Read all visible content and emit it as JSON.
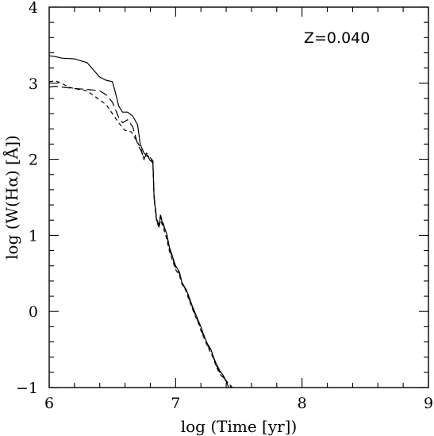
{
  "chart_data": {
    "type": "line",
    "title": "",
    "xlabel": "log (Time [yr])",
    "ylabel": "log (W(Hα) [Å])",
    "xlim": [
      6,
      9
    ],
    "ylim": [
      -1,
      4
    ],
    "x_major_ticks": [
      6,
      7,
      8,
      9
    ],
    "y_major_ticks": [
      -1,
      0,
      1,
      2,
      3,
      4
    ],
    "x_tick_labels": [
      "6",
      "7",
      "8",
      "9"
    ],
    "y_tick_labels": [
      "−1",
      "0",
      "1",
      "2",
      "3",
      "4"
    ],
    "annotation": "Z=0.040",
    "grid": false,
    "legend": "none",
    "series": [
      {
        "style": "solid",
        "color": "#000000",
        "points": [
          [
            6.0,
            3.36
          ],
          [
            6.05,
            3.35
          ],
          [
            6.1,
            3.33
          ],
          [
            6.2,
            3.32
          ],
          [
            6.3,
            3.27
          ],
          [
            6.4,
            3.08
          ],
          [
            6.45,
            3.04
          ],
          [
            6.5,
            3.02
          ],
          [
            6.52,
            2.9
          ],
          [
            6.55,
            2.7
          ],
          [
            6.58,
            2.62
          ],
          [
            6.62,
            2.62
          ],
          [
            6.66,
            2.57
          ],
          [
            6.7,
            2.45
          ],
          [
            6.72,
            2.2
          ],
          [
            6.75,
            2.08
          ],
          [
            6.78,
            2.04
          ],
          [
            6.8,
            1.98
          ],
          [
            6.82,
            1.96
          ],
          [
            6.83,
            1.5
          ],
          [
            6.85,
            1.2
          ],
          [
            6.87,
            1.12
          ],
          [
            6.88,
            1.25
          ],
          [
            6.9,
            1.15
          ],
          [
            6.93,
            1.02
          ],
          [
            6.95,
            0.85
          ],
          [
            6.98,
            0.7
          ],
          [
            7.0,
            0.6
          ],
          [
            7.03,
            0.52
          ],
          [
            7.05,
            0.38
          ],
          [
            7.08,
            0.3
          ],
          [
            7.1,
            0.22
          ],
          [
            7.13,
            0.08
          ],
          [
            7.15,
            0.0
          ],
          [
            7.18,
            -0.12
          ],
          [
            7.2,
            -0.2
          ],
          [
            7.22,
            -0.3
          ],
          [
            7.25,
            -0.42
          ],
          [
            7.28,
            -0.5
          ],
          [
            7.3,
            -0.6
          ],
          [
            7.32,
            -0.68
          ],
          [
            7.35,
            -0.78
          ],
          [
            7.38,
            -0.85
          ],
          [
            7.4,
            -0.92
          ],
          [
            7.42,
            -1.0
          ]
        ]
      },
      {
        "style": "short-dashed",
        "color": "#000000",
        "points": [
          [
            6.0,
            3.02
          ],
          [
            6.05,
            3.03
          ],
          [
            6.1,
            3.0
          ],
          [
            6.15,
            2.95
          ],
          [
            6.2,
            2.93
          ],
          [
            6.3,
            2.9
          ],
          [
            6.4,
            2.78
          ],
          [
            6.45,
            2.72
          ],
          [
            6.5,
            2.6
          ],
          [
            6.55,
            2.48
          ],
          [
            6.6,
            2.38
          ],
          [
            6.65,
            2.36
          ],
          [
            6.7,
            2.22
          ],
          [
            6.73,
            2.12
          ],
          [
            6.75,
            2.0
          ],
          [
            6.78,
            2.05
          ],
          [
            6.8,
            2.0
          ],
          [
            6.82,
            1.95
          ],
          [
            6.83,
            1.48
          ],
          [
            6.85,
            1.18
          ],
          [
            6.87,
            1.1
          ],
          [
            6.88,
            1.2
          ],
          [
            6.9,
            1.12
          ],
          [
            6.93,
            0.95
          ],
          [
            6.95,
            0.8
          ],
          [
            6.98,
            0.65
          ],
          [
            7.0,
            0.55
          ],
          [
            7.03,
            0.48
          ],
          [
            7.05,
            0.36
          ],
          [
            7.08,
            0.28
          ],
          [
            7.1,
            0.18
          ],
          [
            7.13,
            0.05
          ],
          [
            7.15,
            -0.04
          ],
          [
            7.18,
            -0.15
          ],
          [
            7.2,
            -0.25
          ],
          [
            7.22,
            -0.33
          ],
          [
            7.25,
            -0.45
          ],
          [
            7.28,
            -0.55
          ],
          [
            7.3,
            -0.62
          ],
          [
            7.32,
            -0.72
          ],
          [
            7.35,
            -0.82
          ],
          [
            7.38,
            -0.88
          ],
          [
            7.42,
            -0.95
          ],
          [
            7.45,
            -1.0
          ]
        ]
      },
      {
        "style": "long-dashed",
        "color": "#000000",
        "points": [
          [
            6.0,
            2.95
          ],
          [
            6.05,
            2.96
          ],
          [
            6.1,
            2.95
          ],
          [
            6.2,
            2.93
          ],
          [
            6.3,
            2.92
          ],
          [
            6.4,
            2.9
          ],
          [
            6.45,
            2.85
          ],
          [
            6.5,
            2.75
          ],
          [
            6.55,
            2.55
          ],
          [
            6.58,
            2.48
          ],
          [
            6.62,
            2.52
          ],
          [
            6.66,
            2.43
          ],
          [
            6.7,
            2.2
          ],
          [
            6.73,
            2.1
          ],
          [
            6.75,
            2.0
          ],
          [
            6.77,
            2.08
          ],
          [
            6.8,
            2.02
          ],
          [
            6.82,
            1.98
          ],
          [
            6.83,
            1.52
          ],
          [
            6.85,
            1.22
          ],
          [
            6.87,
            1.13
          ],
          [
            6.88,
            1.27
          ],
          [
            6.9,
            1.17
          ],
          [
            6.93,
            1.0
          ],
          [
            6.95,
            0.83
          ],
          [
            6.98,
            0.68
          ],
          [
            7.0,
            0.58
          ],
          [
            7.03,
            0.5
          ],
          [
            7.05,
            0.37
          ],
          [
            7.08,
            0.29
          ],
          [
            7.1,
            0.2
          ],
          [
            7.13,
            0.06
          ],
          [
            7.15,
            -0.02
          ],
          [
            7.18,
            -0.14
          ],
          [
            7.2,
            -0.22
          ],
          [
            7.22,
            -0.32
          ],
          [
            7.25,
            -0.44
          ],
          [
            7.28,
            -0.52
          ],
          [
            7.3,
            -0.61
          ],
          [
            7.32,
            -0.7
          ],
          [
            7.35,
            -0.8
          ],
          [
            7.38,
            -0.87
          ],
          [
            7.41,
            -0.93
          ],
          [
            7.44,
            -1.0
          ]
        ]
      }
    ]
  }
}
